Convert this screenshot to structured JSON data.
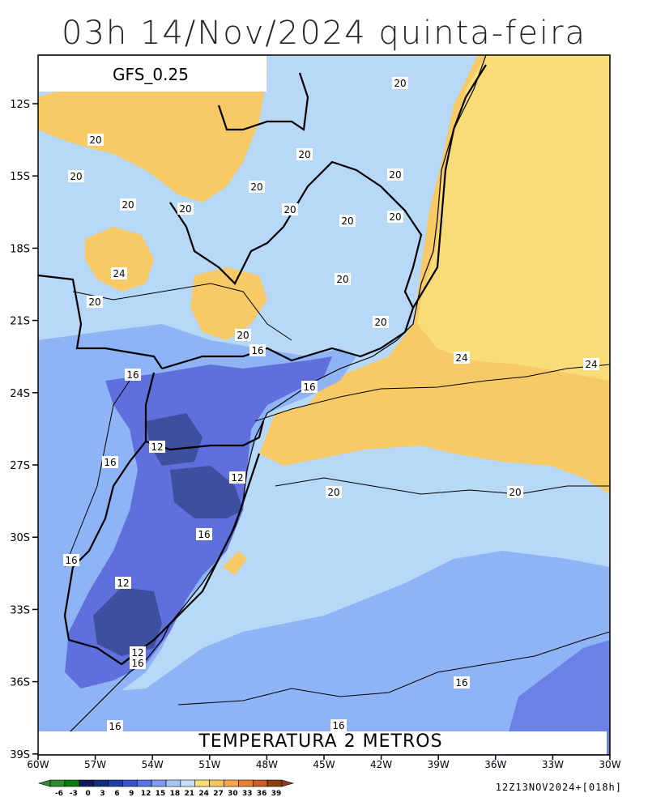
{
  "title": "03h 14/Nov/2024 quinta-feira",
  "model": "GFS_0.25",
  "field": "TEMPERATURA 2 METROS",
  "run_info": "12Z13NOV2024+[018h]",
  "lat_ticks": [
    "12S",
    "15S",
    "18S",
    "21S",
    "24S",
    "27S",
    "30S",
    "33S",
    "36S",
    "39S"
  ],
  "lon_ticks": [
    "60W",
    "57W",
    "54W",
    "51W",
    "48W",
    "45W",
    "42W",
    "39W",
    "36W",
    "33W",
    "30W"
  ],
  "colorbar": {
    "labels": [
      "-6",
      "-3",
      "0",
      "3",
      "6",
      "9",
      "12",
      "15",
      "18",
      "21",
      "24",
      "27",
      "30",
      "33",
      "36",
      "39"
    ],
    "colors": [
      "#2e8b2e",
      "#0f7a0f",
      "#0a1d5a",
      "#152e7a",
      "#1f3fa0",
      "#3a52c8",
      "#5a74e0",
      "#7f9cf0",
      "#a6c4f5",
      "#c9defa",
      "#f9de78",
      "#f7c560",
      "#f5a54a",
      "#e7803a",
      "#c95c28",
      "#8b4010"
    ]
  },
  "colors": {
    "cold_12": "#4a5aa8",
    "cold_15": "#5f6fdc",
    "cool_18": "#8fb4f5",
    "cool_21": "#b8d8f8",
    "warm_24": "#f8ca66",
    "warm_27": "#f8dc78"
  },
  "contour_labels": [
    {
      "name": "contour-label-20-a",
      "text": "20"
    },
    {
      "name": "contour-label-20-b",
      "text": "20"
    },
    {
      "name": "contour-label-20-c",
      "text": "20"
    },
    {
      "name": "contour-label-20-d",
      "text": "20"
    },
    {
      "name": "contour-label-20-e",
      "text": "20"
    },
    {
      "name": "contour-label-20-f",
      "text": "20"
    },
    {
      "name": "contour-label-20-g",
      "text": "20"
    },
    {
      "name": "contour-label-20-h",
      "text": "20"
    },
    {
      "name": "contour-label-20-i",
      "text": "20"
    },
    {
      "name": "contour-label-20-j",
      "text": "20"
    },
    {
      "name": "contour-label-20-k",
      "text": "20"
    },
    {
      "name": "contour-label-20-l",
      "text": "20"
    },
    {
      "name": "contour-label-20-m",
      "text": "20"
    },
    {
      "name": "contour-label-20-n",
      "text": "20"
    },
    {
      "name": "contour-label-20-o",
      "text": "20"
    },
    {
      "name": "contour-label-20-p",
      "text": "20"
    },
    {
      "name": "contour-label-20-q",
      "text": "20"
    },
    {
      "name": "contour-label-24-a",
      "text": "24"
    },
    {
      "name": "contour-label-24-b",
      "text": "24"
    },
    {
      "name": "contour-label-24-c",
      "text": "24"
    },
    {
      "name": "contour-label-16-a",
      "text": "16"
    },
    {
      "name": "contour-label-16-b",
      "text": "16"
    },
    {
      "name": "contour-label-16-c",
      "text": "16"
    },
    {
      "name": "contour-label-16-d",
      "text": "16"
    },
    {
      "name": "contour-label-16-e",
      "text": "16"
    },
    {
      "name": "contour-label-16-f",
      "text": "16"
    },
    {
      "name": "contour-label-16-g",
      "text": "16"
    },
    {
      "name": "contour-label-16-h",
      "text": "16"
    },
    {
      "name": "contour-label-16-i",
      "text": "16"
    },
    {
      "name": "contour-label-16-j",
      "text": "16"
    },
    {
      "name": "contour-label-12-a",
      "text": "12"
    },
    {
      "name": "contour-label-12-b",
      "text": "12"
    },
    {
      "name": "contour-label-12-c",
      "text": "12"
    },
    {
      "name": "contour-label-12-d",
      "text": "12"
    }
  ]
}
